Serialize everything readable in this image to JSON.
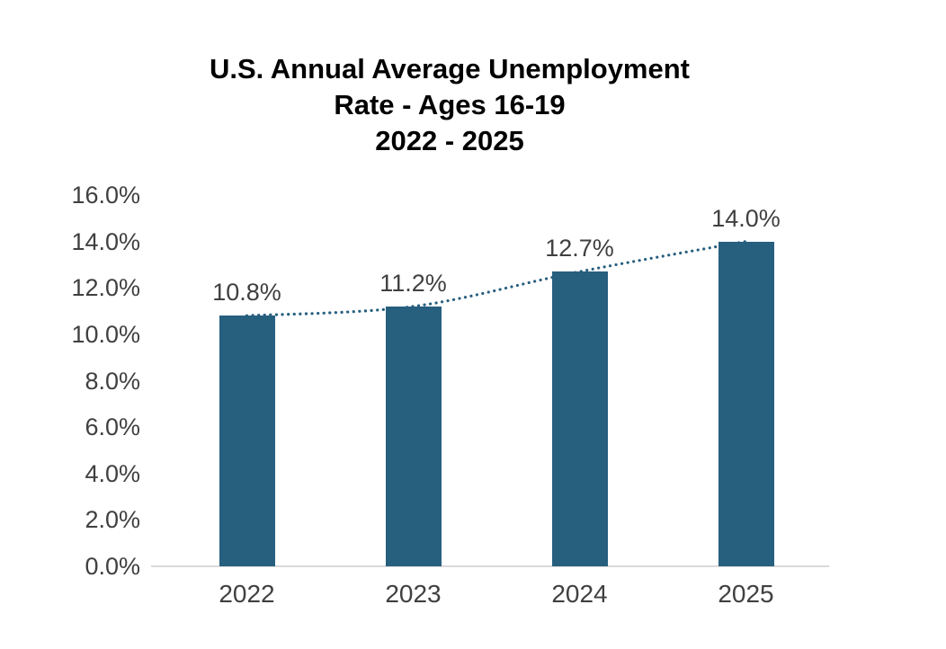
{
  "title": {
    "line1": "U.S. Annual Average Unemployment",
    "line2": "Rate - Ages 16-19",
    "line3": "2022 - 2025"
  },
  "chart_data": {
    "type": "bar",
    "title": "U.S. Annual Average Unemployment Rate - Ages 16-19 2022 - 2025",
    "categories": [
      "2022",
      "2023",
      "2024",
      "2025"
    ],
    "values": [
      10.8,
      11.2,
      12.7,
      14.0
    ],
    "data_labels": [
      "10.8%",
      "11.2%",
      "12.7%",
      "14.0%"
    ],
    "xlabel": "",
    "ylabel": "",
    "ylim": [
      0,
      16
    ],
    "ytick_step": 2,
    "ytick_labels": [
      "0.0%",
      "2.0%",
      "4.0%",
      "6.0%",
      "8.0%",
      "10.0%",
      "12.0%",
      "14.0%",
      "16.0%"
    ],
    "grid": false,
    "legend": false,
    "bar_color": "#275F7F",
    "trendline": {
      "style": "dotted",
      "color": "#275F7F"
    }
  },
  "colors": {
    "bar": "#275F7F",
    "trendline": "#275F7F",
    "axis_line": "#D9D9D9",
    "tick_text": "#404040",
    "title_text": "#000000",
    "background": "#FFFFFF"
  }
}
